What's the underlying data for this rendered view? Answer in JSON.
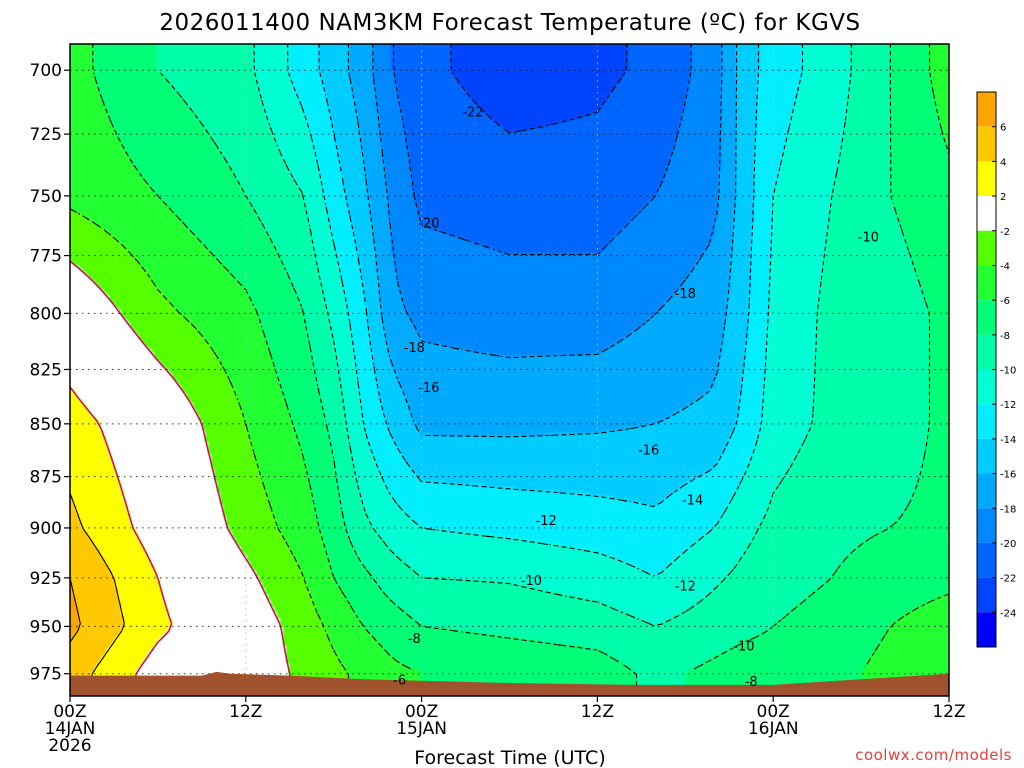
{
  "chart_data": {
    "type": "heatmap",
    "title": "2026011400 NAM3KM Forecast Temperature (ºC) for KGVS",
    "xlabel": "Forecast Time (UTC)",
    "ylabel": "",
    "source": "coolwx.com/models",
    "x_range": [
      0,
      60
    ],
    "x_unit": "hours since 2026-01-14 00Z",
    "y_range": [
      987,
      690
    ],
    "y_scale": "log-pressure (hPa), inverted",
    "x_ticks": [
      {
        "value": 0,
        "lines": [
          "00Z",
          "14JAN",
          "2026"
        ]
      },
      {
        "value": 12,
        "lines": [
          "12Z"
        ]
      },
      {
        "value": 24,
        "lines": [
          "00Z",
          "15JAN"
        ]
      },
      {
        "value": 36,
        "lines": [
          "12Z"
        ]
      },
      {
        "value": 48,
        "lines": [
          "00Z",
          "16JAN"
        ]
      },
      {
        "value": 60,
        "lines": [
          "12Z"
        ]
      }
    ],
    "y_ticks": [
      700,
      725,
      750,
      775,
      800,
      825,
      850,
      875,
      900,
      925,
      950,
      975
    ],
    "grid": true,
    "colorbar": {
      "position": "right",
      "bins": [
        {
          "lo": 6,
          "hi": 8,
          "color": "#ffa500"
        },
        {
          "lo": 4,
          "hi": 6,
          "color": "#ffc800"
        },
        {
          "lo": 2,
          "hi": 4,
          "color": "#ffff00"
        },
        {
          "lo": -2,
          "hi": 2,
          "color": "#ffffff"
        },
        {
          "lo": -4,
          "hi": -2,
          "color": "#55ff00"
        },
        {
          "lo": -6,
          "hi": -4,
          "color": "#22ff33"
        },
        {
          "lo": -8,
          "hi": -6,
          "color": "#00ff77"
        },
        {
          "lo": -10,
          "hi": -8,
          "color": "#00ffaa"
        },
        {
          "lo": -12,
          "hi": -10,
          "color": "#00ffd5"
        },
        {
          "lo": -14,
          "hi": -12,
          "color": "#00eeff"
        },
        {
          "lo": -16,
          "hi": -14,
          "color": "#00ccff"
        },
        {
          "lo": -18,
          "hi": -16,
          "color": "#00aaff"
        },
        {
          "lo": -20,
          "hi": -18,
          "color": "#0088ff"
        },
        {
          "lo": -22,
          "hi": -20,
          "color": "#0066ff"
        },
        {
          "lo": -24,
          "hi": -22,
          "color": "#0044ff"
        },
        {
          "lo": -26,
          "hi": -24,
          "color": "#0000ff"
        }
      ],
      "tick_labels": [
        "6",
        "4",
        "2",
        "-2",
        "-4",
        "-6",
        "-8",
        "-10",
        "-12",
        "-14",
        "-16",
        "-18",
        "-20",
        "-22",
        "-24"
      ]
    },
    "ground_color": "#a0522d",
    "surface_pressure": [
      {
        "t": 0,
        "p": 976
      },
      {
        "t": 9,
        "p": 976
      },
      {
        "t": 10,
        "p": 974
      },
      {
        "t": 11,
        "p": 975
      },
      {
        "t": 15,
        "p": 976
      },
      {
        "t": 20,
        "p": 978
      },
      {
        "t": 30,
        "p": 980
      },
      {
        "t": 39,
        "p": 981
      },
      {
        "t": 48,
        "p": 981
      },
      {
        "t": 54,
        "p": 978
      },
      {
        "t": 60,
        "p": 975
      }
    ],
    "profiles": [
      {
        "t": 0,
        "temps": {
          "700": -5.3,
          "750": -4.5,
          "800": 0,
          "850": 3,
          "900": 4.5,
          "925": 6,
          "950": 6.5,
          "975": 5
        }
      },
      {
        "t": 6,
        "temps": {
          "700": -8,
          "750": -6,
          "800": -3.5,
          "850": 0,
          "900": 1,
          "925": 2,
          "950": 2.5,
          "975": 1
        }
      },
      {
        "t": 12,
        "temps": {
          "700": -9.5,
          "750": -8,
          "800": -5.5,
          "850": -4,
          "900": -2.8,
          "925": -1.5,
          "950": -0.5,
          "975": -0.5
        }
      },
      {
        "t": 16,
        "temps": {
          "700": -13,
          "750": -10,
          "800": -8,
          "850": -6.5,
          "900": -5,
          "925": -4,
          "950": -3,
          "975": -2.5
        }
      },
      {
        "t": 18,
        "temps": {
          "700": -15,
          "750": -13,
          "800": -10.5,
          "850": -8.5,
          "900": -7,
          "925": -6,
          "950": -4.5,
          "975": -3.5
        }
      },
      {
        "t": 20,
        "temps": {
          "700": -17,
          "750": -15.5,
          "800": -13.5,
          "850": -12,
          "900": -9.5,
          "925": -7.5,
          "950": -6,
          "975": -4.5
        }
      },
      {
        "t": 22,
        "temps": {
          "700": -20,
          "750": -18.5,
          "800": -17.5,
          "850": -14.5,
          "900": -11,
          "925": -9,
          "950": -7,
          "975": -5.5
        }
      },
      {
        "t": 24,
        "temps": {
          "700": -21.5,
          "750": -20.5,
          "800": -18.5,
          "850": -16.5,
          "900": -12,
          "925": -10,
          "950": -8,
          "975": -6
        }
      },
      {
        "t": 30,
        "temps": {
          "700": -23,
          "750": -21,
          "800": -19,
          "850": -16.5,
          "900": -12.5,
          "925": -10.2,
          "950": -8.5,
          "975": -6.5
        }
      },
      {
        "t": 36,
        "temps": {
          "700": -22.5,
          "750": -21,
          "800": -19,
          "850": -16.3,
          "900": -13,
          "925": -11,
          "950": -9,
          "975": -7
        }
      },
      {
        "t": 40,
        "temps": {
          "700": -21.5,
          "750": -20,
          "800": -18,
          "850": -16,
          "900": -13.5,
          "925": -12,
          "950": -10,
          "975": -8.5
        }
      },
      {
        "t": 44,
        "temps": {
          "700": -19,
          "750": -18.5,
          "800": -17,
          "850": -15.5,
          "900": -12,
          "925": -10.3,
          "950": -9,
          "975": -7.5
        }
      },
      {
        "t": 46,
        "temps": {
          "700": -15,
          "750": -15,
          "800": -14.5,
          "850": -13.5,
          "900": -10.5,
          "925": -9.5,
          "950": -8.5,
          "975": -7
        }
      },
      {
        "t": 48,
        "temps": {
          "700": -13,
          "750": -12,
          "800": -11.5,
          "850": -11,
          "900": -9.5,
          "925": -9,
          "950": -8,
          "975": -7
        }
      },
      {
        "t": 52,
        "temps": {
          "700": -11,
          "750": -10,
          "800": -9.5,
          "850": -9.5,
          "900": -8.5,
          "925": -8,
          "950": -7,
          "975": -6.5
        }
      },
      {
        "t": 56,
        "temps": {
          "700": -8,
          "750": -8,
          "800": -9,
          "850": -9,
          "900": -8,
          "925": -7,
          "950": -6,
          "975": -5.5
        }
      },
      {
        "t": 60,
        "temps": {
          "700": -5,
          "750": -6.5,
          "800": -7.5,
          "850": -7.5,
          "900": -7.5,
          "925": -6.5,
          "950": -5,
          "975": -4.5
        }
      }
    ],
    "annotations": [
      {
        "text": "-22",
        "t": 27.5,
        "p": 716
      },
      {
        "text": "-20",
        "t": 24.5,
        "p": 761
      },
      {
        "text": "-18",
        "t": 42,
        "p": 791
      },
      {
        "text": "-18",
        "t": 23.5,
        "p": 815
      },
      {
        "text": "-16",
        "t": 24.5,
        "p": 833
      },
      {
        "text": "-16",
        "t": 39.5,
        "p": 862
      },
      {
        "text": "-14",
        "t": 42.5,
        "p": 886
      },
      {
        "text": "-12",
        "t": 32.5,
        "p": 896
      },
      {
        "text": "-12",
        "t": 42,
        "p": 929
      },
      {
        "text": "-10",
        "t": 31.5,
        "p": 926
      },
      {
        "text": "-10",
        "t": 46,
        "p": 960
      },
      {
        "text": "-10",
        "t": 54.5,
        "p": 767
      },
      {
        "text": "-8",
        "t": 23.5,
        "p": 956
      },
      {
        "text": "-8",
        "t": 46.5,
        "p": 979
      },
      {
        "text": "-6",
        "t": 22.5,
        "p": 978
      }
    ]
  }
}
